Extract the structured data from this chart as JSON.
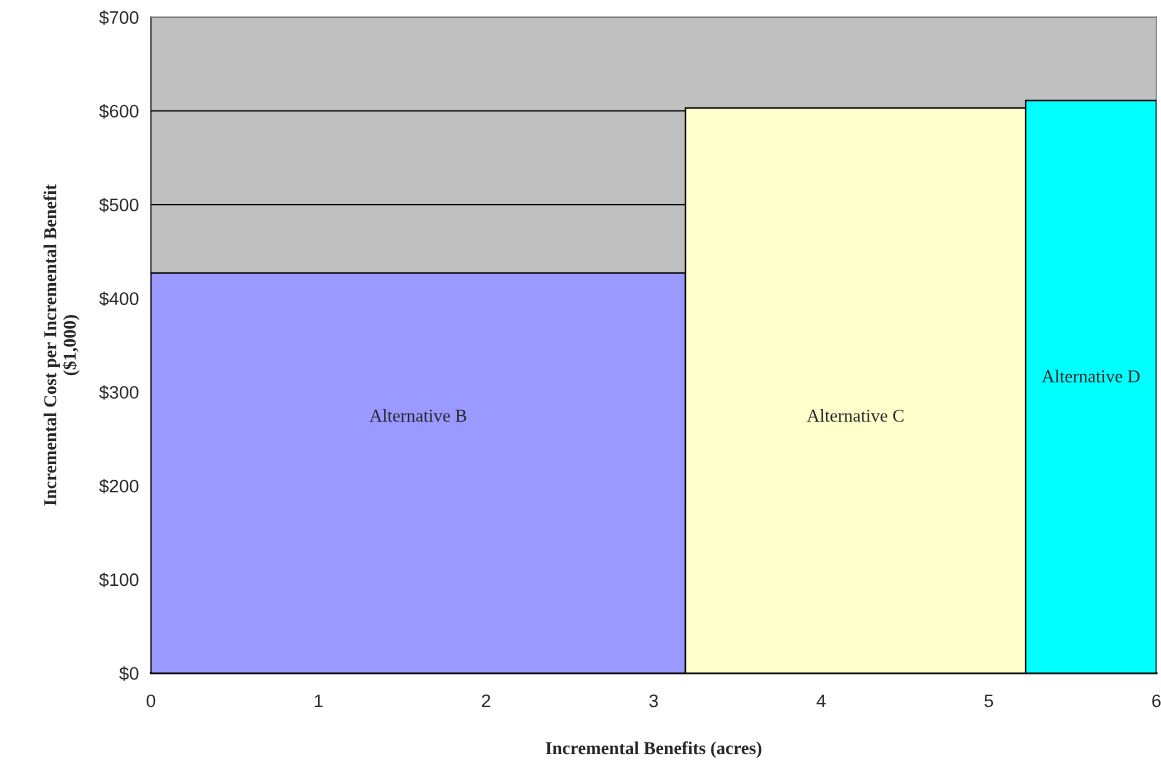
{
  "chart_data": {
    "type": "histogram",
    "xlabel": "Incremental Benefits (acres)",
    "ylabel": "Incremental Cost per Incremental Benefit\n($1,000)",
    "bins": [
      0,
      3.19,
      5.22,
      6
    ],
    "values": [
      427,
      603,
      611
    ],
    "colors": [
      "#9999ff",
      "#ffffcc",
      "#00ffff"
    ],
    "xlim": [
      0,
      6
    ],
    "xticks": [
      0,
      1,
      2,
      3,
      4,
      5,
      6
    ],
    "ylim": [
      0,
      700
    ],
    "yticks": [
      {
        "value": 0,
        "label": "$0"
      },
      {
        "value": 100,
        "label": "$100"
      },
      {
        "value": 200,
        "label": "$200"
      },
      {
        "value": 300,
        "label": "$300"
      },
      {
        "value": 400,
        "label": "$400"
      },
      {
        "value": 500,
        "label": "$500"
      },
      {
        "value": 600,
        "label": "$600"
      },
      {
        "value": 700,
        "label": "$700"
      }
    ],
    "grid": "y",
    "annotations": [
      "Alternative B",
      "Alternative C",
      "Alternative D"
    ]
  }
}
